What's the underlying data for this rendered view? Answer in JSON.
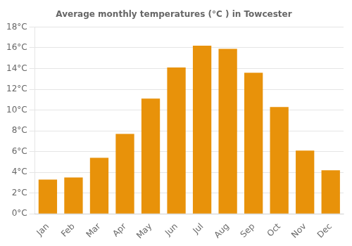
{
  "chart_data": {
    "type": "bar",
    "title": "Average monthly temperatures (°C ) in Towcester",
    "categories": [
      "Jan",
      "Feb",
      "Mar",
      "Apr",
      "May",
      "Jun",
      "Jul",
      "Aug",
      "Sep",
      "Oct",
      "Nov",
      "Dec"
    ],
    "values": [
      3.3,
      3.5,
      5.4,
      7.7,
      11.1,
      14.1,
      16.2,
      15.9,
      13.6,
      10.3,
      6.1,
      4.2
    ],
    "color": "#E8920A",
    "ylim": [
      0,
      18
    ],
    "yticks": [
      {
        "value": 0,
        "label": "0°C"
      },
      {
        "value": 2,
        "label": "2°C"
      },
      {
        "value": 4,
        "label": "4°C"
      },
      {
        "value": 6,
        "label": "6°C"
      },
      {
        "value": 8,
        "label": "8°C"
      },
      {
        "value": 10,
        "label": "10°C"
      },
      {
        "value": 12,
        "label": "12°C"
      },
      {
        "value": 14,
        "label": "14°C"
      },
      {
        "value": 16,
        "label": "16°C"
      },
      {
        "value": 18,
        "label": "18°C"
      }
    ],
    "grid": true
  }
}
